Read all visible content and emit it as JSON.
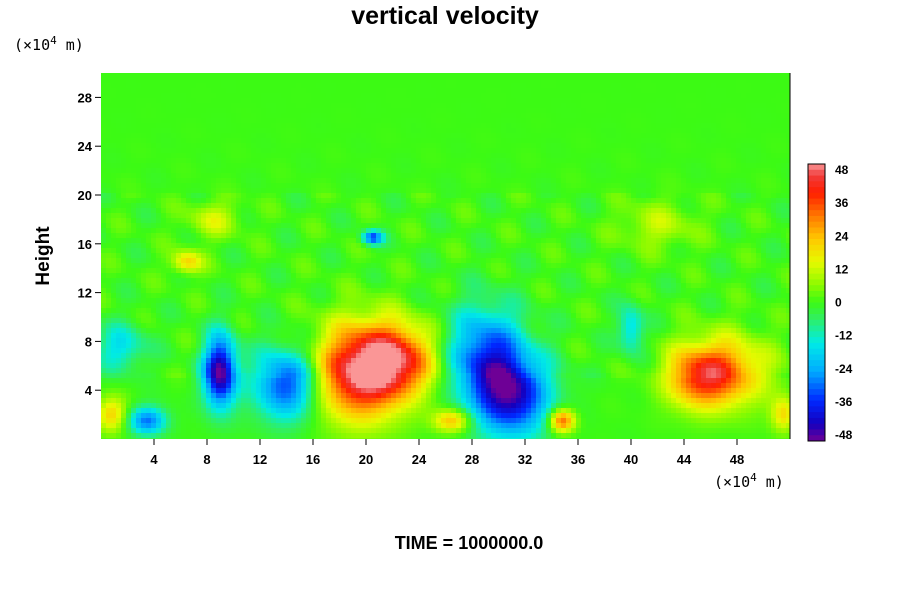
{
  "chart_data": {
    "type": "heatmap",
    "title": "vertical velocity",
    "ylabel": "Height",
    "y_unit_prefix": "(×10",
    "y_unit_exp": "4",
    "y_unit_suffix": " m)",
    "x_unit_prefix": "(×10",
    "x_unit_exp": "4",
    "x_unit_suffix": " m)",
    "xlim": [
      0,
      52
    ],
    "ylim": [
      0,
      30
    ],
    "x_ticks": [
      4,
      8,
      12,
      16,
      20,
      24,
      28,
      32,
      36,
      40,
      44,
      48
    ],
    "y_ticks": [
      4,
      8,
      12,
      16,
      20,
      24,
      28
    ],
    "colorbar": {
      "min": -48,
      "max": 48,
      "ticks": [
        48,
        36,
        24,
        12,
        0,
        -12,
        -24,
        -36,
        -48
      ]
    },
    "features": [
      {
        "x": 19.5,
        "y": 5.5,
        "value": 46,
        "rx": 3.5,
        "ry": 4.0
      },
      {
        "x": 22.5,
        "y": 6.5,
        "value": 32,
        "rx": 3.0,
        "ry": 3.0
      },
      {
        "x": 47.0,
        "y": 5.5,
        "value": 28,
        "rx": 3.5,
        "ry": 3.0
      },
      {
        "x": 45.0,
        "y": 5.0,
        "value": 22,
        "rx": 2.5,
        "ry": 2.5
      },
      {
        "x": 34.8,
        "y": 1.5,
        "value": 34,
        "rx": 1.0,
        "ry": 1.0
      },
      {
        "x": 26.5,
        "y": 1.5,
        "value": 24,
        "rx": 1.5,
        "ry": 1.0
      },
      {
        "x": 0.8,
        "y": 2.0,
        "value": 20,
        "rx": 1.2,
        "ry": 1.5
      },
      {
        "x": 51.5,
        "y": 2.0,
        "value": 18,
        "rx": 1.0,
        "ry": 1.5
      },
      {
        "x": 6.5,
        "y": 14.5,
        "value": 20,
        "rx": 1.2,
        "ry": 1.0
      },
      {
        "x": 9.0,
        "y": 5.5,
        "value": -48,
        "rx": 1.3,
        "ry": 3.0
      },
      {
        "x": 14.0,
        "y": 4.5,
        "value": -34,
        "rx": 2.5,
        "ry": 3.0
      },
      {
        "x": 31.0,
        "y": 3.5,
        "value": -40,
        "rx": 3.0,
        "ry": 3.5
      },
      {
        "x": 29.0,
        "y": 7.0,
        "value": -30,
        "rx": 3.0,
        "ry": 4.0
      },
      {
        "x": 3.5,
        "y": 1.5,
        "value": -28,
        "rx": 1.5,
        "ry": 1.2
      },
      {
        "x": 20.5,
        "y": 16.5,
        "value": -32,
        "rx": 0.8,
        "ry": 0.6
      },
      {
        "x": 1.5,
        "y": 7.5,
        "value": -16,
        "rx": 2.0,
        "ry": 2.0
      },
      {
        "x": 40.0,
        "y": 9.0,
        "value": -18,
        "rx": 1.0,
        "ry": 2.0
      },
      {
        "x": 8.5,
        "y": 18.0,
        "value": 12,
        "rx": 2.0,
        "ry": 1.5
      },
      {
        "x": 42.0,
        "y": 17.5,
        "value": 10,
        "rx": 3.0,
        "ry": 2.0
      }
    ]
  },
  "footer": {
    "time_label": "TIME = 1000000.0"
  }
}
